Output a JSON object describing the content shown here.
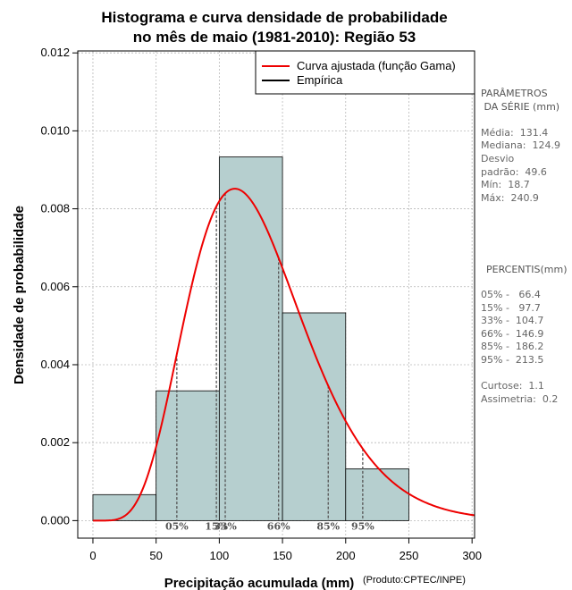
{
  "chart_data": {
    "type": "bar",
    "title": [
      "Histograma e curva densidade de probabilidade",
      "no mês de maio (1981-2010): Região 53"
    ],
    "xlabel": "Precipitação acumulada (mm)",
    "ylabel": "Densidade de probabilidade",
    "product_note": "(Produto:CPTEC/INPE)",
    "xlim": [
      -12,
      302
    ],
    "ylim": [
      -0.00045,
      0.01205
    ],
    "x_ticks": [
      0,
      50,
      100,
      150,
      200,
      250,
      300
    ],
    "y_ticks": [
      0.0,
      0.002,
      0.004,
      0.006,
      0.008,
      0.01,
      0.012
    ],
    "y_tick_labels": [
      "0.000",
      "0.002",
      "0.004",
      "0.006",
      "0.008",
      "0.010",
      "0.012"
    ],
    "grid": true,
    "bars": [
      {
        "x0": 0,
        "x1": 50,
        "density": 0.000667
      },
      {
        "x0": 50,
        "x1": 100,
        "density": 0.00333
      },
      {
        "x0": 100,
        "x1": 150,
        "density": 0.00933
      },
      {
        "x0": 150,
        "x1": 200,
        "density": 0.00533
      },
      {
        "x0": 200,
        "x1": 250,
        "density": 0.00133
      }
    ],
    "gamma_fit": {
      "shape": 6.91,
      "scale": 19.0
    },
    "fitted_curve_color": "#ee0000",
    "bar_color": "#b6cfcf",
    "legend": [
      {
        "label": "Curva ajustada (função Gama)",
        "color": "#ee0000"
      },
      {
        "label": "Empírica",
        "color": "#000000"
      }
    ],
    "legend_position": "top-right",
    "percentile_markers": [
      {
        "label": "05%",
        "value": 66.4
      },
      {
        "label": "15%",
        "value": 97.7
      },
      {
        "label": "33%",
        "value": 104.7
      },
      {
        "label": "66%",
        "value": 146.9
      },
      {
        "label": "85%",
        "value": 186.2
      },
      {
        "label": "95%",
        "value": 213.5
      }
    ]
  },
  "stats_panel": {
    "params_title": [
      "PARÂMETROS",
      " DA SÉRIE (mm)"
    ],
    "params": [
      "Média:  131.4",
      "Mediana:  124.9",
      "Desvio",
      "padrão:  49.6",
      "Mín:  18.7",
      "Máx:  240.9"
    ],
    "percentis_title": "PERCENTIS(mm)",
    "percentis": [
      "05% -   66.4",
      "15% -   97.7",
      "33% -  104.7",
      "66% -  146.9",
      "85% -  186.2",
      "95% -  213.5"
    ],
    "shape_stats": [
      "Curtose:  1.1",
      "Assimetria:  0.2"
    ]
  }
}
